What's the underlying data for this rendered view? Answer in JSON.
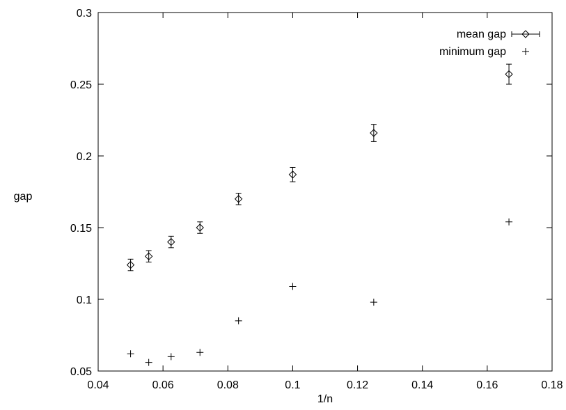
{
  "chart_data": {
    "type": "scatter",
    "title": "",
    "xlabel": "1/n",
    "ylabel": "gap",
    "xlim": [
      0.04,
      0.18
    ],
    "ylim": [
      0.05,
      0.3
    ],
    "x_ticks": [
      0.04,
      0.06,
      0.08,
      0.1,
      0.12,
      0.14,
      0.16,
      0.18
    ],
    "x_tick_labels": [
      "0.04",
      "0.06",
      "0.08",
      "0.1",
      "0.12",
      "0.14",
      "0.16",
      "0.18"
    ],
    "y_ticks": [
      0.05,
      0.1,
      0.15,
      0.2,
      0.25,
      0.3
    ],
    "y_tick_labels": [
      "0.05",
      "0.1",
      "0.15",
      "0.2",
      "0.25",
      "0.3"
    ],
    "grid": false,
    "legend_position": "top-right",
    "series": [
      {
        "name": "mean gap",
        "marker": "diamond",
        "error_bars": true,
        "x": [
          0.05,
          0.0556,
          0.0625,
          0.0714,
          0.0833,
          0.1,
          0.125,
          0.1667
        ],
        "y": [
          0.124,
          0.13,
          0.14,
          0.15,
          0.17,
          0.187,
          0.216,
          0.257
        ],
        "yerr": [
          0.004,
          0.004,
          0.004,
          0.004,
          0.004,
          0.005,
          0.006,
          0.007
        ]
      },
      {
        "name": "minimum gap",
        "marker": "plus",
        "error_bars": false,
        "x": [
          0.05,
          0.0556,
          0.0625,
          0.0714,
          0.0833,
          0.1,
          0.125,
          0.1667
        ],
        "y": [
          0.062,
          0.056,
          0.06,
          0.063,
          0.085,
          0.109,
          0.098,
          0.154
        ]
      }
    ]
  }
}
